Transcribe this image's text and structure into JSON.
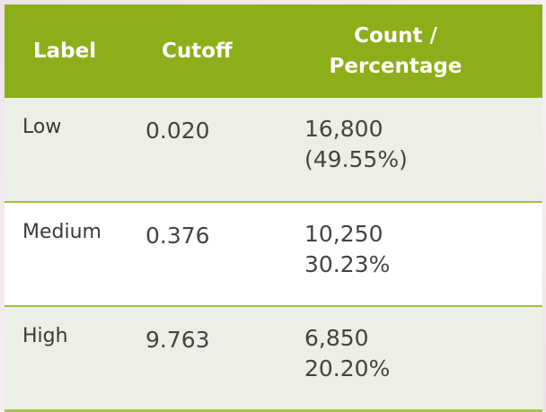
{
  "table": {
    "headers": {
      "label": "Label",
      "cutoff": "Cutoff",
      "count_line1": "Count /",
      "count_line2": "Percentage"
    },
    "rows": [
      {
        "label": "Low",
        "cutoff": "0.020",
        "count": "16,800",
        "percentage": "(49.55%)"
      },
      {
        "label": "Medium",
        "cutoff": "0.376",
        "count": "10,250",
        "percentage": "30.23%"
      },
      {
        "label": "High",
        "cutoff": "9.763",
        "count": "6,850",
        "percentage": "20.20%"
      }
    ]
  },
  "colors": {
    "header_bg": "#8caf19",
    "header_text": "#ffffff",
    "row_shaded_bg": "#ebefe6",
    "row_plain_bg": "#ffffff",
    "divider": "#9fbf3a"
  }
}
